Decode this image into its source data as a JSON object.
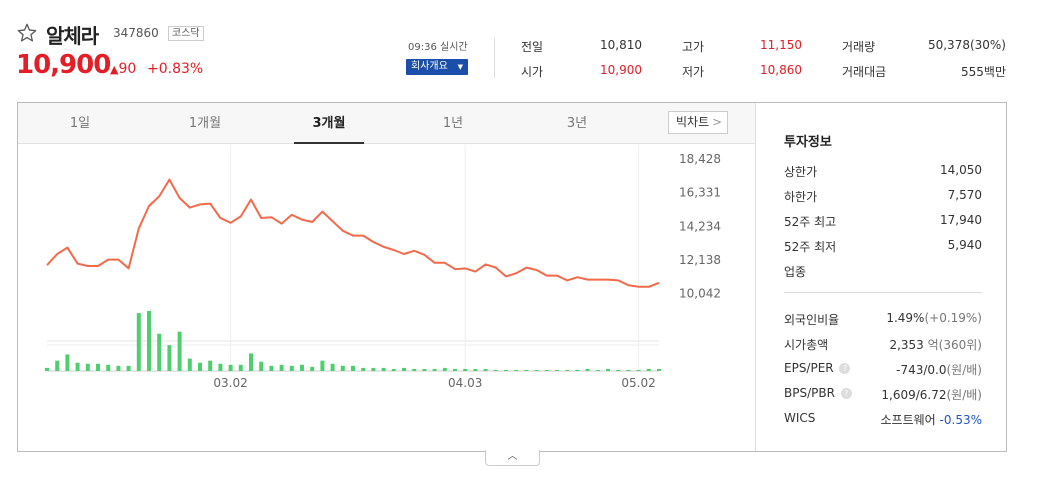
{
  "stock": {
    "name": "알체라",
    "code": "347860",
    "market": "코스닥",
    "price": "10,900",
    "change_symbol": "▲",
    "change": "90",
    "change_pct": "+0.83%",
    "rt_time": "09:36 실시간",
    "company_button": "회사개요",
    "favorite_icon": "star-outline-icon"
  },
  "quote": {
    "prev_label": "전일",
    "prev_value": "10,810",
    "high_label": "고가",
    "high_value": "11,150",
    "volume_label": "거래량",
    "volume_value": "50,378(30%)",
    "open_label": "시가",
    "open_value": "10,900",
    "low_label": "저가",
    "low_value": "10,860",
    "amount_label": "거래대금",
    "amount_value": "555백만"
  },
  "tabs": [
    {
      "label": "1일",
      "active": false
    },
    {
      "label": "1개월",
      "active": false
    },
    {
      "label": "3개월",
      "active": true
    },
    {
      "label": "1년",
      "active": false
    },
    {
      "label": "3년",
      "active": false
    }
  ],
  "bigchart_label": "빅차트",
  "investment": {
    "title": "투자정보",
    "upper_limit_label": "상한가",
    "upper_limit": "14,050",
    "lower_limit_label": "하한가",
    "lower_limit": "7,570",
    "week52_high_label": "52주 최고",
    "week52_high": "17,940",
    "week52_low_label": "52주 최저",
    "week52_low": "5,940",
    "industry_label": "업종",
    "foreign_label": "외국인비율",
    "foreign_value": "1.49%",
    "foreign_change": "(+0.19%)",
    "mcap_label": "시가총액",
    "mcap_value": "2,353",
    "mcap_unit": "억(360위)",
    "eps_label": "EPS/PER",
    "eps_value": "-743/0.0",
    "eps_unit": "(원/배)",
    "bps_label": "BPS/PBR",
    "bps_value": "1,609/6.72",
    "bps_unit": "(원/배)",
    "wics_label": "WICS",
    "wics_value": "소프트웨어",
    "wics_change": "-0.53%"
  },
  "colors": {
    "up": "#e41e26",
    "down": "#1f55c6",
    "line": "#f26a4a",
    "volume": "#4fce6e"
  },
  "chart_data": {
    "type": "line",
    "xlabel": "",
    "ylabel": "",
    "x_tick_labels": [
      "03.02",
      "04.03",
      "05.02"
    ],
    "y_tick_labels": [
      "18,428",
      "16,331",
      "14,234",
      "12,138",
      "10,042"
    ],
    "ylim": [
      9500,
      19000
    ],
    "grid": true,
    "series": [
      {
        "type": "line",
        "values": [
          11800,
          12500,
          12900,
          11900,
          11750,
          11750,
          12150,
          12150,
          11600,
          14100,
          15500,
          16100,
          17150,
          16000,
          15400,
          15600,
          15650,
          14750,
          14450,
          14850,
          15900,
          14750,
          14800,
          14400,
          14950,
          14650,
          14500,
          15150,
          14550,
          13950,
          13650,
          13650,
          13250,
          12950,
          12750,
          12500,
          12700,
          12450,
          11950,
          11950,
          11550,
          11600,
          11400,
          11850,
          11650,
          11100,
          11300,
          11650,
          11500,
          11150,
          11150,
          10850,
          11050,
          10900,
          10900,
          10900,
          10850,
          10550,
          10450,
          10450,
          10700
        ]
      },
      {
        "type": "bar",
        "name": "거래량",
        "values": [
          3,
          10,
          16,
          8,
          7,
          7,
          6,
          5,
          5,
          56,
          58,
          36,
          25,
          38,
          12,
          8,
          10,
          7,
          6,
          6,
          17,
          9,
          5,
          6,
          5,
          6,
          4,
          10,
          7,
          5,
          5,
          3,
          3,
          3,
          2,
          3,
          2,
          2,
          2,
          3,
          2,
          2,
          2,
          2,
          1,
          1,
          1,
          1,
          1,
          1,
          1,
          1,
          1,
          2,
          1,
          2,
          1,
          1,
          1,
          2,
          2
        ]
      }
    ]
  }
}
